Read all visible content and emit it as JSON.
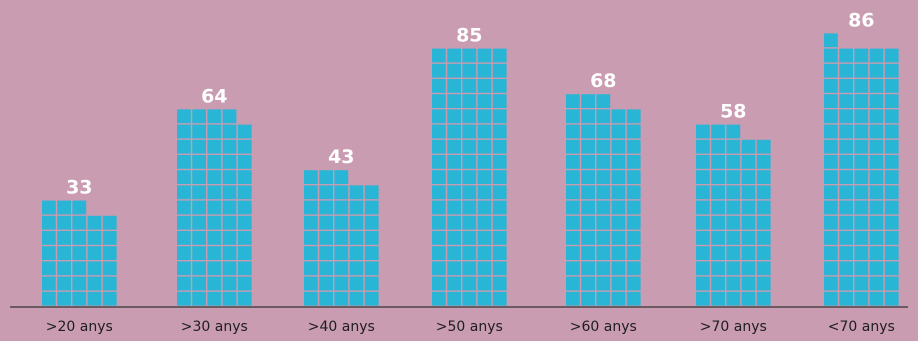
{
  "chart_data": {
    "type": "bar",
    "unit_glyph": "square",
    "categories": [
      ">20 anys",
      ">30 anys",
      ">40 anys",
      ">50 anys",
      ">60 anys",
      ">70 anys",
      "<70 anys"
    ],
    "values": [
      33,
      64,
      43,
      85,
      68,
      58,
      86
    ],
    "title": "",
    "xlabel": "",
    "ylabel": "",
    "grid": false,
    "legend": "none"
  },
  "colors": {
    "background": "#c99cb1",
    "unit_fill": "#29b6d6",
    "value_text": "#ffffff",
    "axis": "#333333",
    "category_text": "#1e1e1e"
  }
}
